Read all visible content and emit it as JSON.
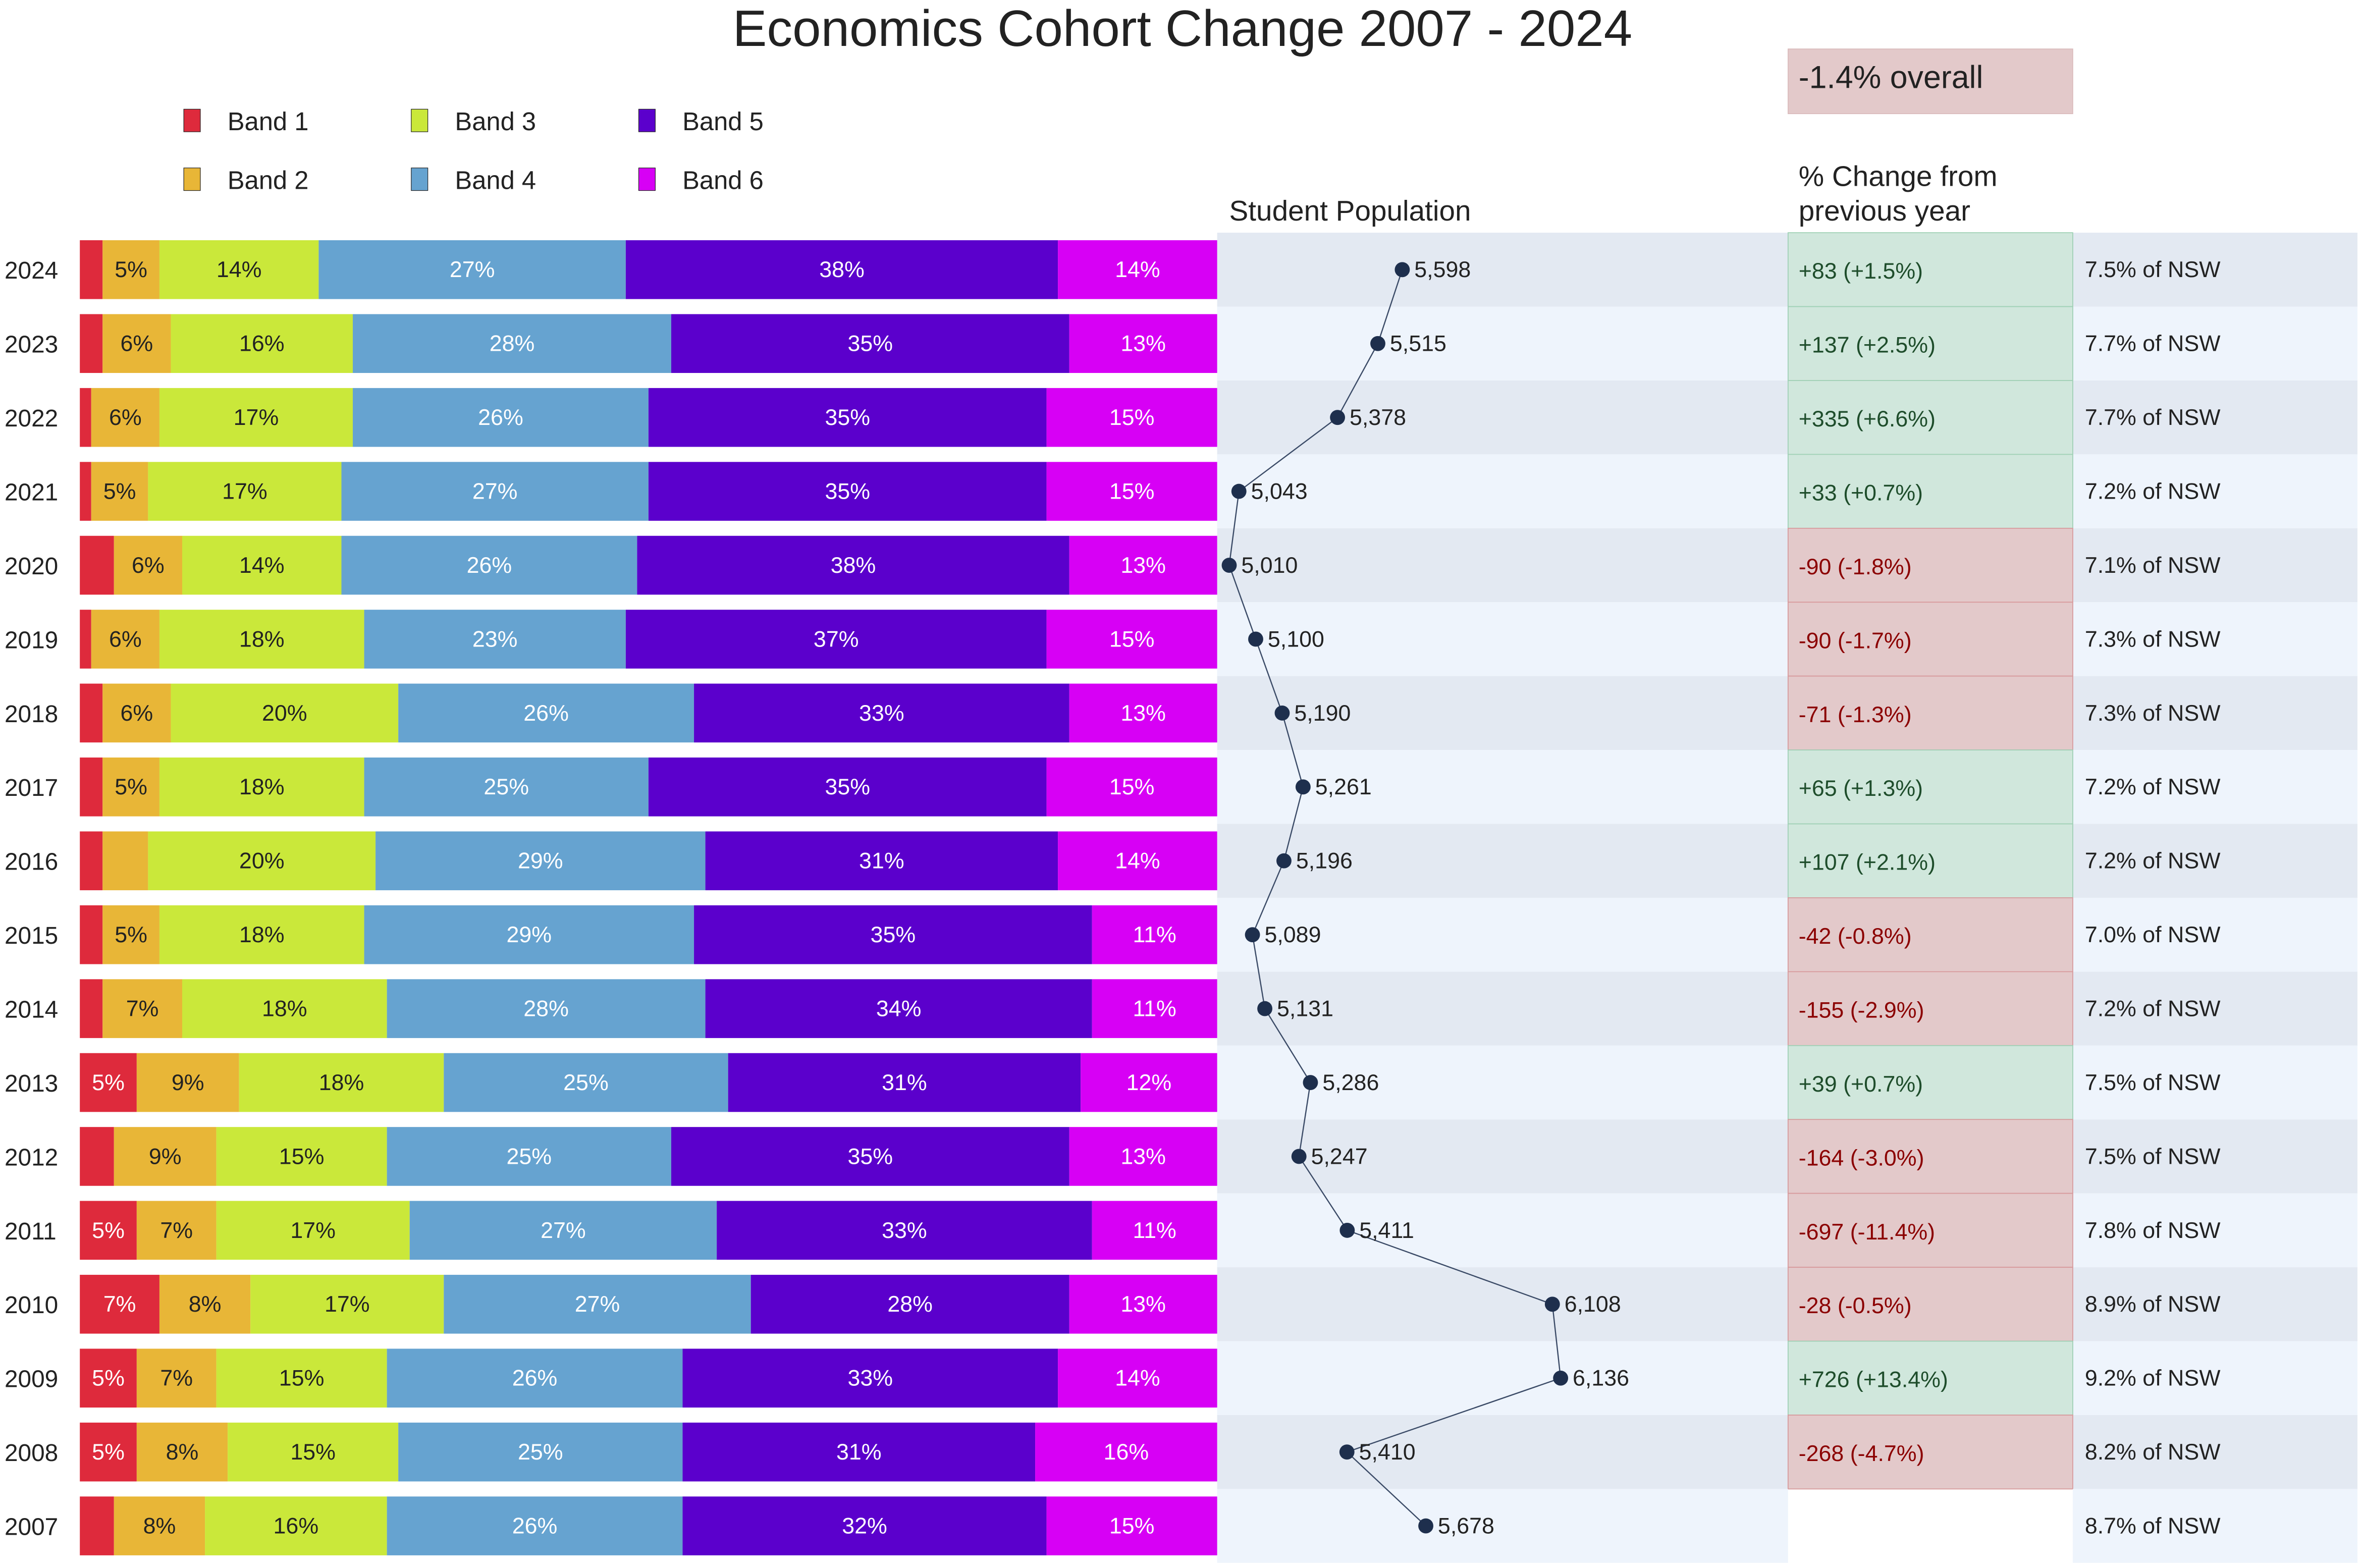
{
  "chart_data": {
    "type": "bar",
    "title": "Economics Cohort Change 2007 - 2024",
    "overall_change": "-1.4% overall",
    "population_header": "Student Population",
    "change_header_line1": "% Change from",
    "change_header_line2": "previous year",
    "legend_placement": "top-left",
    "legend": [
      "Band 1",
      "Band 2",
      "Band 3",
      "Band 4",
      "Band 5",
      "Band 6"
    ],
    "band_colors": [
      "#de2a3c",
      "#e8b637",
      "#cae83a",
      "#66a3d0",
      "#5b00cc",
      "#d700f5"
    ],
    "years": [
      "2024",
      "2023",
      "2022",
      "2021",
      "2020",
      "2019",
      "2018",
      "2017",
      "2016",
      "2015",
      "2014",
      "2013",
      "2012",
      "2011",
      "2010",
      "2009",
      "2008",
      "2007"
    ],
    "bands_percent": [
      [
        2,
        5,
        14,
        27,
        38,
        14
      ],
      [
        2,
        6,
        16,
        28,
        35,
        13
      ],
      [
        1,
        6,
        17,
        26,
        35,
        15
      ],
      [
        1,
        5,
        17,
        27,
        35,
        15
      ],
      [
        3,
        6,
        14,
        26,
        38,
        13
      ],
      [
        1,
        6,
        18,
        23,
        37,
        15
      ],
      [
        2,
        6,
        20,
        26,
        33,
        13
      ],
      [
        2,
        5,
        18,
        25,
        35,
        15
      ],
      [
        2,
        4,
        20,
        29,
        31,
        14
      ],
      [
        2,
        5,
        18,
        29,
        35,
        11
      ],
      [
        2,
        7,
        18,
        28,
        34,
        11
      ],
      [
        5,
        9,
        18,
        25,
        31,
        12
      ],
      [
        3,
        9,
        15,
        25,
        35,
        13
      ],
      [
        5,
        7,
        17,
        27,
        33,
        11
      ],
      [
        7,
        8,
        17,
        27,
        28,
        13
      ],
      [
        5,
        7,
        15,
        26,
        33,
        14
      ],
      [
        5,
        8,
        15,
        25,
        31,
        16
      ],
      [
        3,
        8,
        16,
        26,
        32,
        15
      ]
    ],
    "population": [
      5598,
      5515,
      5378,
      5043,
      5010,
      5100,
      5190,
      5261,
      5196,
      5089,
      5131,
      5286,
      5247,
      5411,
      6108,
      6136,
      5410,
      5678
    ],
    "population_labels": [
      "5,598",
      "5,515",
      "5,378",
      "5,043",
      "5,010",
      "5,100",
      "5,190",
      "5,261",
      "5,196",
      "5,089",
      "5,131",
      "5,286",
      "5,247",
      "5,411",
      "6,108",
      "6,136",
      "5,410",
      "5,678"
    ],
    "change_labels": [
      "+83  (+1.5%)",
      "+137  (+2.5%)",
      "+335  (+6.6%)",
      "+33  (+0.7%)",
      "-90  (-1.8%)",
      "-90  (-1.7%)",
      "-71  (-1.3%)",
      "+65  (+1.3%)",
      "+107  (+2.1%)",
      "-42  (-0.8%)",
      "-155  (-2.9%)",
      "+39  (+0.7%)",
      "-164  (-3.0%)",
      "-697  (-11.4%)",
      "-28  (-0.5%)",
      "+726  (+13.4%)",
      "-268  (-4.7%)",
      ""
    ],
    "nsw_share": [
      "7.5% of NSW",
      "7.7% of NSW",
      "7.7% of NSW",
      "7.2% of NSW",
      "7.1% of NSW",
      "7.3% of NSW",
      "7.3% of NSW",
      "7.2% of NSW",
      "7.2% of NSW",
      "7.0% of NSW",
      "7.2% of NSW",
      "7.5% of NSW",
      "7.5% of NSW",
      "7.8% of NSW",
      "8.9% of NSW",
      "9.2% of NSW",
      "8.2% of NSW",
      "8.7% of NSW"
    ],
    "colors": {
      "row_a": "#e3e9f2",
      "row_b": "#eef4fc",
      "pos_bg": "#d0e7dc",
      "pos_text": "#1e4d2b",
      "neg_bg": "#e3c9ca",
      "neg_text": "#8b0000",
      "marker": "#1e2f4d"
    }
  }
}
